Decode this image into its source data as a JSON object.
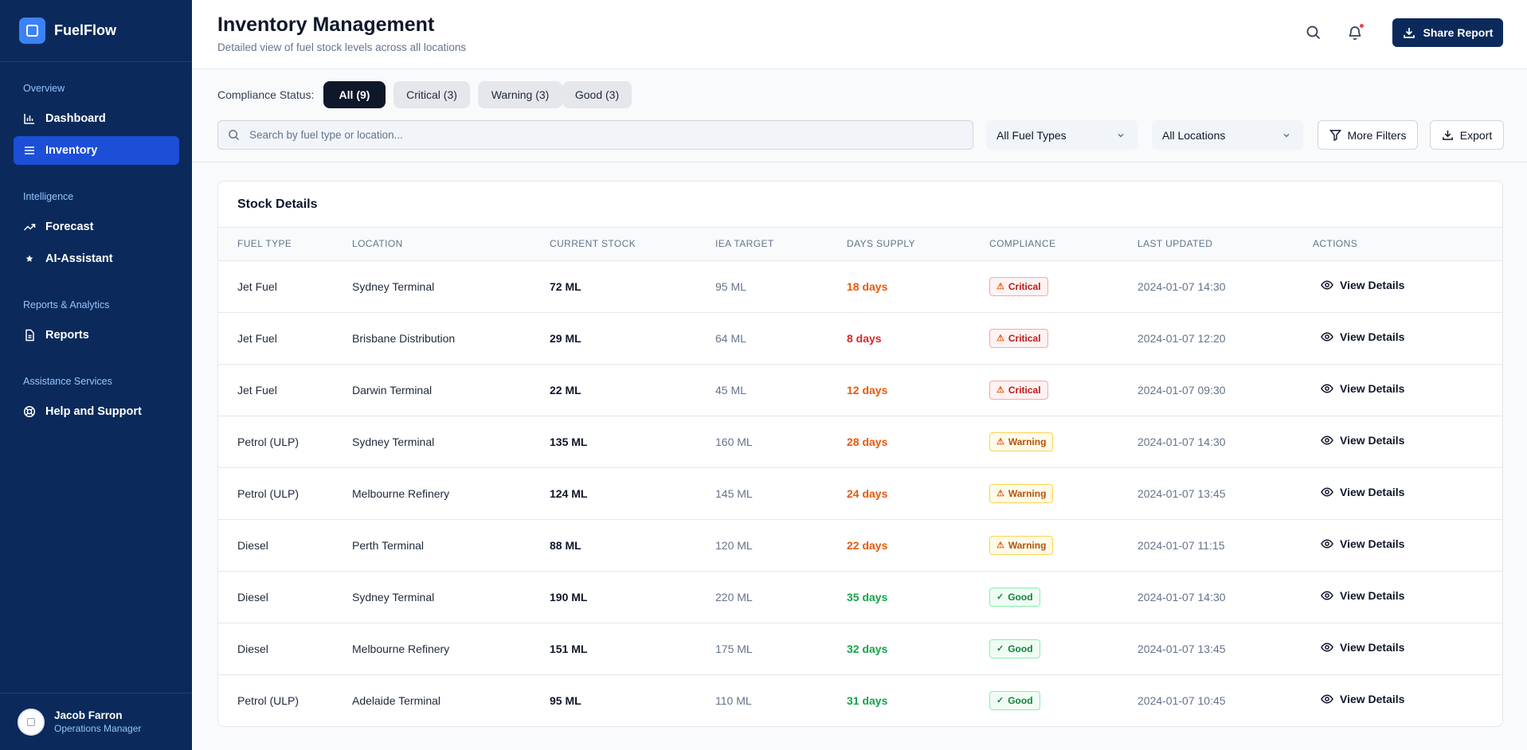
{
  "app": {
    "name": "FuelFlow"
  },
  "sidebar": {
    "sections": [
      {
        "title": "Overview",
        "items": [
          {
            "label": "Dashboard",
            "icon": "bar-chart-icon"
          },
          {
            "label": "Inventory",
            "icon": "list-icon",
            "active": true
          }
        ]
      },
      {
        "title": "Intelligence",
        "items": [
          {
            "label": "Forecast",
            "icon": "trending-up-icon"
          },
          {
            "label": "AI-Assistant",
            "icon": "star-icon"
          }
        ]
      },
      {
        "title": "Reports & Analytics",
        "items": [
          {
            "label": "Reports",
            "icon": "document-icon"
          }
        ]
      },
      {
        "title": "Assistance Services",
        "items": [
          {
            "label": "Help and Support",
            "icon": "lifebuoy-icon"
          }
        ]
      }
    ]
  },
  "user": {
    "name": "Jacob Farron",
    "role": "Operations Manager"
  },
  "header": {
    "title": "Inventory Management",
    "subtitle": "Detailed view of fuel stock levels across all locations",
    "share_label": "Share Report"
  },
  "filters": {
    "status_label": "Compliance Status:",
    "pills": [
      "All (9)",
      "Critical (3)",
      "Warning (3)",
      "Good (3)"
    ],
    "active_pill": "All (9)",
    "search_placeholder": "Search by fuel type or location...",
    "search_value": "",
    "fuel_type": "All Fuel Types",
    "location": "All Locations",
    "more_filters_label": "More Filters",
    "export_label": "Export"
  },
  "table": {
    "title": "Stock Details",
    "columns": [
      "FUEL TYPE",
      "LOCATION",
      "CURRENT STOCK",
      "IEA TARGET",
      "DAYS SUPPLY",
      "COMPLIANCE",
      "LAST UPDATED",
      "ACTIONS"
    ],
    "action_label": "View Details",
    "rows": [
      {
        "fuel": "Jet Fuel",
        "location": "Sydney Terminal",
        "stock": "72 ML",
        "target": "95 ML",
        "days": "18 days",
        "days_color": "#ea580c",
        "status": "Critical",
        "updated": "2024-01-07 14:30"
      },
      {
        "fuel": "Jet Fuel",
        "location": "Brisbane Distribution",
        "stock": "29 ML",
        "target": "64 ML",
        "days": "8 days",
        "days_color": "#dc2626",
        "status": "Critical",
        "updated": "2024-01-07 12:20"
      },
      {
        "fuel": "Jet Fuel",
        "location": "Darwin Terminal",
        "stock": "22 ML",
        "target": "45 ML",
        "days": "12 days",
        "days_color": "#ea580c",
        "status": "Critical",
        "updated": "2024-01-07 09:30"
      },
      {
        "fuel": "Petrol (ULP)",
        "location": "Sydney Terminal",
        "stock": "135 ML",
        "target": "160 ML",
        "days": "28 days",
        "days_color": "#ea580c",
        "status": "Warning",
        "updated": "2024-01-07 14:30"
      },
      {
        "fuel": "Petrol (ULP)",
        "location": "Melbourne Refinery",
        "stock": "124 ML",
        "target": "145 ML",
        "days": "24 days",
        "days_color": "#ea580c",
        "status": "Warning",
        "updated": "2024-01-07 13:45"
      },
      {
        "fuel": "Diesel",
        "location": "Perth Terminal",
        "stock": "88 ML",
        "target": "120 ML",
        "days": "22 days",
        "days_color": "#ea580c",
        "status": "Warning",
        "updated": "2024-01-07 11:15"
      },
      {
        "fuel": "Diesel",
        "location": "Sydney Terminal",
        "stock": "190 ML",
        "target": "220 ML",
        "days": "35 days",
        "days_color": "#16a34a",
        "status": "Good",
        "updated": "2024-01-07 14:30"
      },
      {
        "fuel": "Diesel",
        "location": "Melbourne Refinery",
        "stock": "151 ML",
        "target": "175 ML",
        "days": "32 days",
        "days_color": "#16a34a",
        "status": "Good",
        "updated": "2024-01-07 13:45"
      },
      {
        "fuel": "Petrol (ULP)",
        "location": "Adelaide Terminal",
        "stock": "95 ML",
        "target": "110 ML",
        "days": "31 days",
        "days_color": "#16a34a",
        "status": "Good",
        "updated": "2024-01-07 10:45"
      }
    ]
  },
  "colors": {
    "sidebar_bg": "#0b2a5b",
    "nav_active": "#1d4ed8",
    "brand_accent": "#3b82f6",
    "critical": "#dc2626",
    "warning": "#ea580c",
    "good": "#16a34a"
  }
}
